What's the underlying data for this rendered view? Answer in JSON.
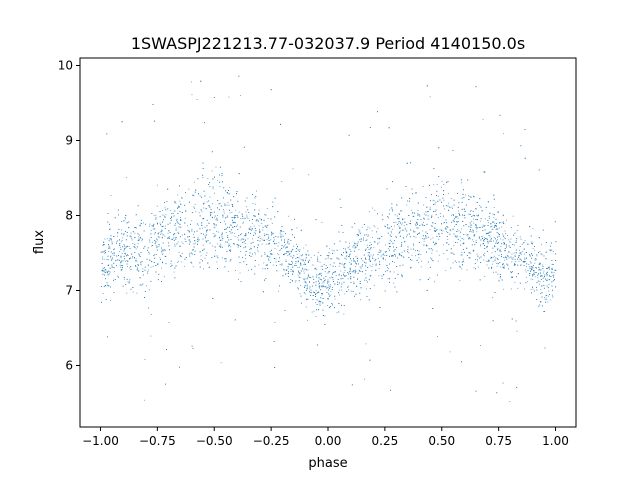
{
  "chart_data": {
    "type": "scatter",
    "title": "1SWASPJ221213.77-032037.9 Period 4140150.0s",
    "xlabel": "phase",
    "ylabel": "flux",
    "xlim": [
      -1.09,
      1.09
    ],
    "ylim": [
      5.18,
      10.1
    ],
    "xticks": [
      -1.0,
      -0.75,
      -0.5,
      -0.25,
      0.0,
      0.25,
      0.5,
      0.75,
      1.0
    ],
    "xtick_labels": [
      "−1.00",
      "−0.75",
      "−0.50",
      "−0.25",
      "0.00",
      "0.25",
      "0.50",
      "0.75",
      "1.00"
    ],
    "yticks": [
      6,
      7,
      8,
      9,
      10
    ],
    "ytick_labels": [
      "6",
      "7",
      "8",
      "9",
      "10"
    ],
    "grid": false,
    "marker_color": "#1f77b4",
    "series": [
      {
        "x": [
          -1.0,
          -0.95,
          -0.9,
          -0.85,
          -0.8,
          -0.75,
          -0.7,
          -0.65,
          -0.6,
          -0.55,
          -0.5,
          -0.45,
          -0.4,
          -0.35,
          -0.3,
          -0.25,
          -0.2,
          -0.15,
          -0.1,
          -0.05,
          0.0,
          0.05,
          0.1,
          0.15,
          0.2,
          0.25,
          0.3,
          0.35,
          0.4,
          0.45,
          0.5,
          0.55,
          0.6,
          0.65,
          0.7,
          0.75,
          0.8,
          0.85,
          0.9,
          0.95,
          1.0
        ],
        "y": [
          7.3,
          7.5,
          7.55,
          7.5,
          7.45,
          7.65,
          7.8,
          7.85,
          7.8,
          7.95,
          8.0,
          7.9,
          7.8,
          7.75,
          7.7,
          7.65,
          7.55,
          7.45,
          7.2,
          7.05,
          7.1,
          7.25,
          7.35,
          7.5,
          7.55,
          7.6,
          7.7,
          7.8,
          7.75,
          7.85,
          7.95,
          7.9,
          7.85,
          7.75,
          7.7,
          7.6,
          7.55,
          7.45,
          7.35,
          7.1,
          7.3
        ],
        "spread": [
          0.45,
          0.5,
          0.5,
          0.5,
          0.55,
          0.6,
          0.6,
          0.55,
          0.55,
          0.65,
          0.65,
          0.6,
          0.55,
          0.5,
          0.5,
          0.45,
          0.45,
          0.4,
          0.45,
          0.45,
          0.45,
          0.45,
          0.45,
          0.5,
          0.5,
          0.55,
          0.6,
          0.55,
          0.55,
          0.65,
          0.65,
          0.6,
          0.55,
          0.55,
          0.5,
          0.5,
          0.45,
          0.45,
          0.45,
          0.45,
          0.45
        ]
      }
    ]
  }
}
